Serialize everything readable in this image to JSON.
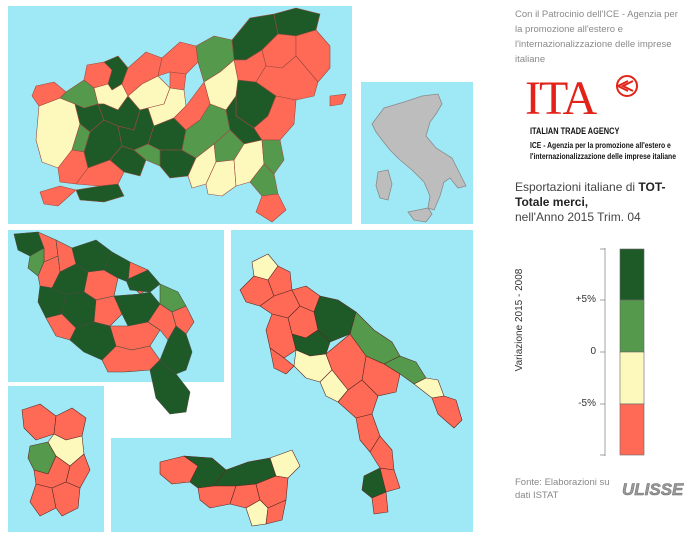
{
  "header": {
    "patronage": "Con il Patrocinio dell'ICE - Agenzia per la promozione all'estero e l'internazionalizzazione delle imprese italiane"
  },
  "logo": {
    "letters": "ITA",
    "agency_en": "ITALIAN TRADE AGENCY",
    "agency_it": "ICE - Agenzia per la promozione all'estero e l'internazionalizzazione delle imprese italiane"
  },
  "title": {
    "prefix": "Esportazioni italiane di ",
    "product": "TOT- Totale merci,",
    "period": "nell'Anno 2015 Trim. 04"
  },
  "legend": {
    "axis_label": "Variazione 2015 - 2008",
    "ticks": [
      "+5%",
      "0",
      "-5%"
    ],
    "classes": [
      {
        "range": "> +5%",
        "color": "#1e5a28"
      },
      {
        "range": "0 / +5%",
        "color": "#55994d"
      },
      {
        "range": "-5% / 0",
        "color": "#fdf8bc"
      },
      {
        "range": "< -5%",
        "color": "#ff6a56"
      }
    ]
  },
  "source": "Fonte: Elaborazioni su dati ISTAT",
  "brand": "ULISSE",
  "colors": {
    "sea": "#9fe9f6",
    "inset_background": "#9fe9f6",
    "italy_outline": "#bdbdbd",
    "ita_red": "#e2231a"
  }
}
